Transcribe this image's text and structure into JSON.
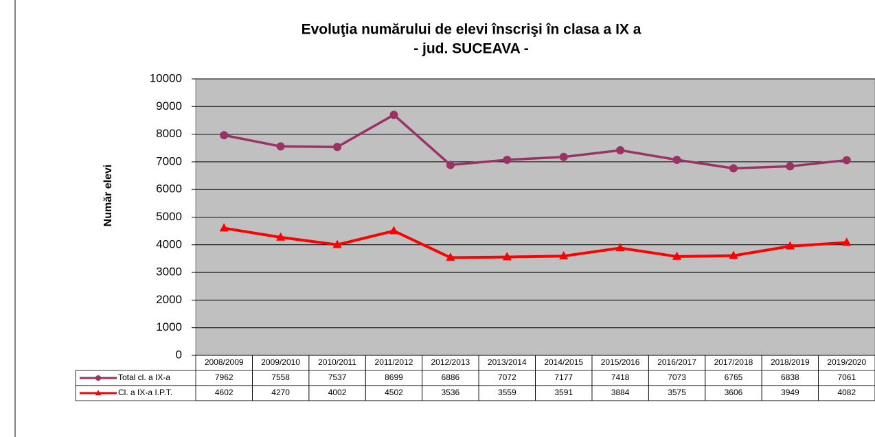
{
  "chart_data": {
    "type": "line",
    "title": "Evoluţia numărului de elevi înscrişi în clasa a IX a",
    "subtitle": "- jud. SUCEAVA -",
    "y_label": "Număr  elevi",
    "categories": [
      "2008/2009",
      "2009/2010",
      "2010/2011",
      "2011/2012",
      "2012/2013",
      "2013/2014",
      "2014/2015",
      "2015/2016",
      "2016/2017",
      "2017/2018",
      "2018/2019",
      "2019/2020"
    ],
    "series": [
      {
        "name": "Total cl. a IX-a",
        "color": "#993366",
        "marker": "circle",
        "values": [
          7962,
          7558,
          7537,
          8699,
          6886,
          7072,
          7177,
          7418,
          7073,
          6765,
          6838,
          7061
        ]
      },
      {
        "name": "Cl. a IX-a I.P.T.",
        "color": "#ff0000",
        "marker": "triangle",
        "values": [
          4602,
          4270,
          4002,
          4502,
          3536,
          3559,
          3591,
          3884,
          3575,
          3606,
          3949,
          4082
        ]
      }
    ],
    "ylim": [
      0,
      10000
    ],
    "yticks": [
      0,
      1000,
      2000,
      3000,
      4000,
      5000,
      6000,
      7000,
      8000,
      9000,
      10000
    ],
    "grid": true,
    "plot_background": "#c0c0c0",
    "data_table": true
  }
}
